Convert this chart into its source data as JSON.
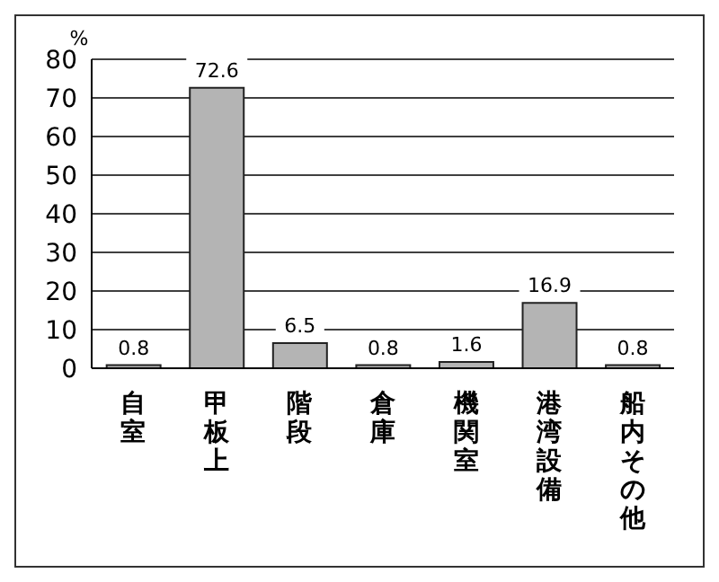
{
  "chart_data": {
    "type": "bar",
    "ylabel": "%",
    "categories": [
      "自室",
      "甲板上",
      "階段",
      "倉庫",
      "機関室",
      "港湾設備",
      "船内その他"
    ],
    "values": [
      0.8,
      72.6,
      6.5,
      0.8,
      1.6,
      16.9,
      0.8
    ],
    "color": "#b4b4b4",
    "ylim": [
      0,
      80
    ],
    "yticks": [
      0,
      10,
      20,
      30,
      40,
      50,
      60,
      70,
      80
    ],
    "grid": "y",
    "data_labels": true
  }
}
